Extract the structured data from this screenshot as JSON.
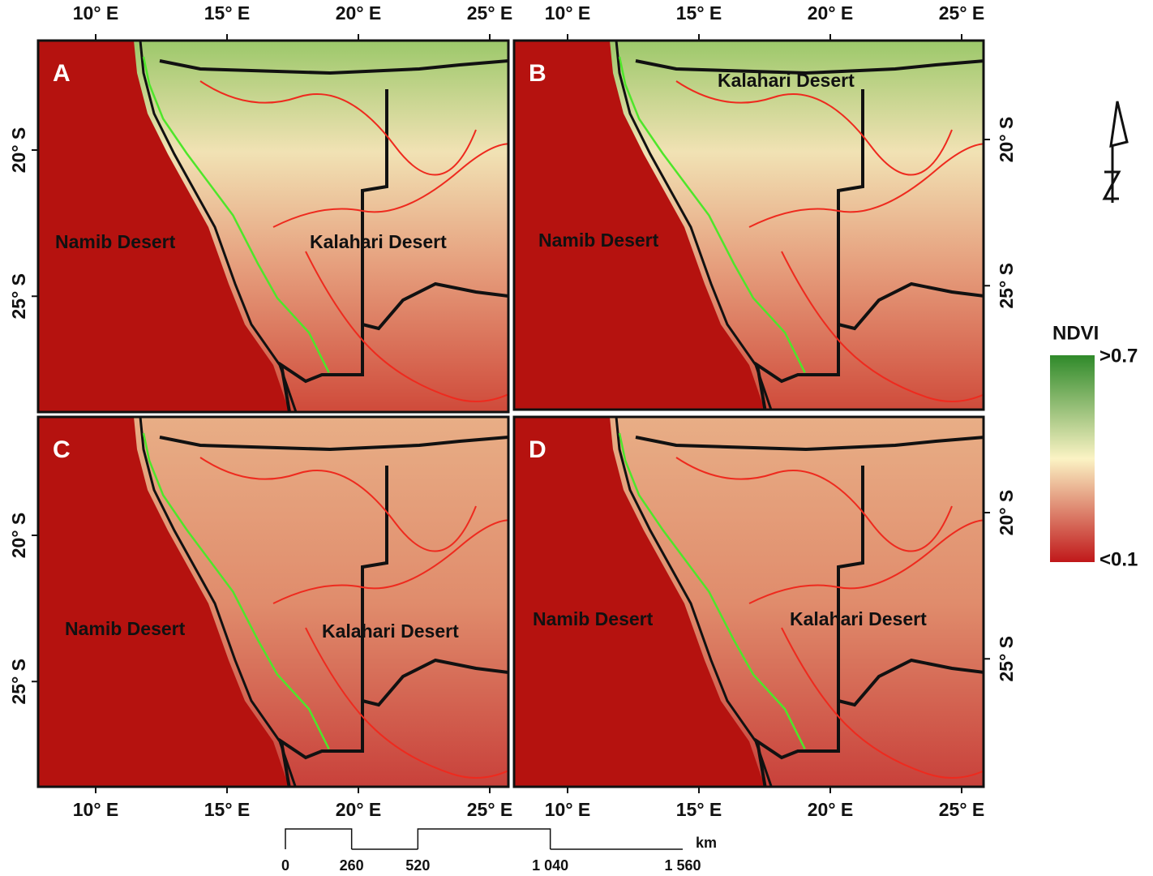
{
  "panels": [
    {
      "label": "A",
      "annotations": [
        "Namib Desert",
        "Kalahari Desert"
      ]
    },
    {
      "label": "B",
      "annotations": [
        "Kalahari Desert",
        "Namib Desert"
      ]
    },
    {
      "label": "C",
      "annotations": [
        "Namib Desert",
        "Kalahari Desert"
      ]
    },
    {
      "label": "D",
      "annotations": [
        "Namib Desert",
        "Kalahari Desert"
      ]
    }
  ],
  "longitude_ticks": [
    {
      "value": 10,
      "label": "10° E"
    },
    {
      "value": 15,
      "label": "15° E"
    },
    {
      "value": 20,
      "label": "20° E"
    },
    {
      "value": 25,
      "label": "25° E"
    }
  ],
  "latitude_ticks": [
    {
      "value": 20,
      "label": "20° S"
    },
    {
      "value": 25,
      "label": "25° S"
    }
  ],
  "legend": {
    "title": "NDVI",
    "max_label": ">0.7",
    "min_label": "<0.1"
  },
  "scale_bar": {
    "unit": "km",
    "ticks": [
      {
        "value": 0,
        "label": "0"
      },
      {
        "value": 260,
        "label": "260"
      },
      {
        "value": 520,
        "label": "520"
      },
      {
        "value": 1040,
        "label": "1 040"
      },
      {
        "value": 1560,
        "label": "1 560"
      }
    ]
  }
}
